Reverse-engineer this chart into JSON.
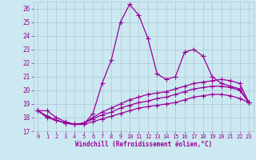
{
  "title": "",
  "xlabel": "Windchill (Refroidissement éolien,°C)",
  "xlim": [
    -0.5,
    23.5
  ],
  "ylim": [
    17,
    26.5
  ],
  "yticks": [
    17,
    18,
    19,
    20,
    21,
    22,
    23,
    24,
    25,
    26
  ],
  "xticks": [
    0,
    1,
    2,
    3,
    4,
    5,
    6,
    7,
    8,
    9,
    10,
    11,
    12,
    13,
    14,
    15,
    16,
    17,
    18,
    19,
    20,
    21,
    22,
    23
  ],
  "bg_color": "#cce8f0",
  "line_color": "#990099",
  "grid_color": "#aac8d8",
  "line1_y": [
    18.5,
    18.5,
    18.0,
    17.7,
    17.5,
    17.5,
    18.3,
    20.5,
    22.2,
    25.0,
    26.3,
    25.5,
    23.8,
    21.2,
    20.8,
    21.0,
    22.8,
    23.0,
    22.5,
    21.0,
    20.5,
    20.3,
    20.1,
    19.1
  ],
  "line2_y": [
    18.5,
    18.1,
    17.8,
    17.6,
    17.5,
    17.6,
    18.0,
    18.4,
    18.7,
    19.0,
    19.3,
    19.5,
    19.7,
    19.8,
    19.9,
    20.1,
    20.3,
    20.5,
    20.6,
    20.7,
    20.8,
    20.7,
    20.5,
    19.1
  ],
  "line3_y": [
    18.5,
    18.1,
    17.8,
    17.6,
    17.5,
    17.6,
    17.9,
    18.2,
    18.4,
    18.7,
    18.9,
    19.1,
    19.2,
    19.4,
    19.5,
    19.7,
    19.9,
    20.1,
    20.2,
    20.3,
    20.3,
    20.2,
    20.0,
    19.1
  ],
  "line4_y": [
    18.5,
    18.0,
    17.8,
    17.6,
    17.5,
    17.5,
    17.7,
    17.9,
    18.1,
    18.3,
    18.5,
    18.7,
    18.8,
    18.9,
    19.0,
    19.1,
    19.3,
    19.5,
    19.6,
    19.7,
    19.7,
    19.6,
    19.4,
    19.1
  ]
}
